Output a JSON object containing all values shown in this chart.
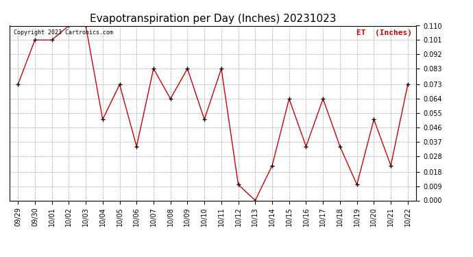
{
  "title": "Evapotranspiration per Day (Inches) 20231023",
  "legend_label": "ET  (Inches)",
  "copyright": "Copyright 2023 Cartronics.com",
  "x_labels": [
    "09/29",
    "09/30",
    "10/01",
    "10/02",
    "10/03",
    "10/04",
    "10/05",
    "10/06",
    "10/07",
    "10/08",
    "10/09",
    "10/10",
    "10/11",
    "10/12",
    "10/13",
    "10/14",
    "10/15",
    "10/16",
    "10/17",
    "10/18",
    "10/19",
    "10/20",
    "10/21",
    "10/22"
  ],
  "y_values": [
    0.073,
    0.101,
    0.101,
    0.11,
    0.11,
    0.051,
    0.073,
    0.034,
    0.083,
    0.064,
    0.083,
    0.051,
    0.083,
    0.01,
    0.0,
    0.022,
    0.064,
    0.034,
    0.064,
    0.034,
    0.01,
    0.051,
    0.022,
    0.073
  ],
  "line_color": "#cc0000",
  "marker_color": "#000000",
  "background_color": "#ffffff",
  "grid_color": "#aaaaaa",
  "title_fontsize": 11,
  "copyright_fontsize": 6,
  "legend_fontsize": 8,
  "tick_fontsize": 7,
  "ylim": [
    0.0,
    0.11
  ],
  "yticks": [
    0.0,
    0.009,
    0.018,
    0.028,
    0.037,
    0.046,
    0.055,
    0.064,
    0.073,
    0.083,
    0.092,
    0.101,
    0.11
  ]
}
